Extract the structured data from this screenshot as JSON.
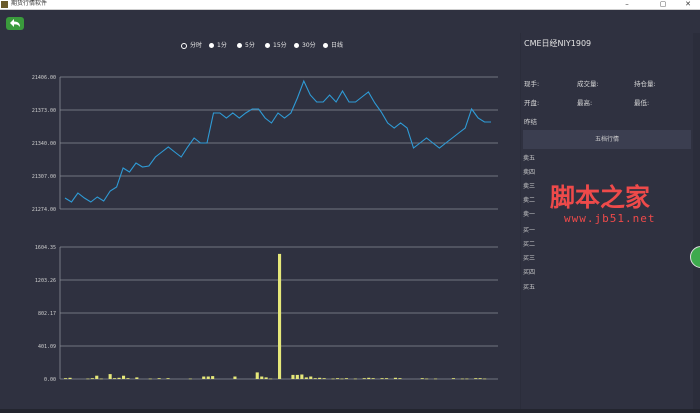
{
  "window": {
    "title": "期货行情软件",
    "min": "–",
    "max": "▢",
    "close": "✕"
  },
  "toolbar": {
    "back_icon": "back-arrow-icon"
  },
  "periods": [
    "分时",
    "1分",
    "5分",
    "15分",
    "30分",
    "日线"
  ],
  "selected_period": "分时",
  "panel": {
    "title": "CME日经NIY1909",
    "fields": [
      [
        "现手:",
        "成交量:",
        "持仓量:"
      ],
      [
        "开盘:",
        "最高:",
        "最低:"
      ],
      [
        "昨结"
      ]
    ],
    "quote_header": "五档行情",
    "quote_rows": [
      "卖五",
      "卖四",
      "卖三",
      "卖二",
      "卖一",
      "买一",
      "买二",
      "买三",
      "买四",
      "买五"
    ]
  },
  "watermark": {
    "main": "脚本之家",
    "sub": "www.jb51.net"
  },
  "colors": {
    "price_line": "#2f9bd6",
    "volume_bar": "#e6e87a",
    "grid": "#8a8c96",
    "background": "#2f3140"
  },
  "chart_data": [
    {
      "type": "line",
      "title": "",
      "ylim": [
        21274.0,
        21406.0
      ],
      "ytick_labels": [
        "21406.00",
        "21373.00",
        "21340.00",
        "21307.00",
        "21274.00"
      ],
      "series": [
        {
          "values": [
            21285,
            21281,
            21290,
            21285,
            21281,
            21286,
            21282,
            21292,
            21296,
            21315,
            21311,
            21320,
            21316,
            21317,
            21326,
            21331,
            21336,
            21331,
            21326,
            21336,
            21345,
            21340,
            21340,
            21370,
            21370,
            21365,
            21370,
            21365,
            21370,
            21374,
            21374,
            21365,
            21360,
            21370,
            21365,
            21370,
            21385,
            21402,
            21388,
            21381,
            21381,
            21388,
            21381,
            21392,
            21381,
            21381,
            21386,
            21391,
            21380,
            21371,
            21360,
            21355,
            21360,
            21355,
            21335,
            21340,
            21345,
            21340,
            21335,
            21340,
            21345,
            21350,
            21355,
            21374,
            21365,
            21361,
            21361
          ]
        }
      ]
    },
    {
      "type": "bar",
      "title": "",
      "ylim": [
        0.0,
        1604.35
      ],
      "ytick_labels": [
        "1604.35",
        "1203.26",
        "802.17",
        "401.09",
        "0.00"
      ],
      "series": [
        {
          "values": [
            10,
            15,
            0,
            0,
            0,
            5,
            10,
            40,
            5,
            0,
            60,
            10,
            15,
            40,
            10,
            0,
            20,
            0,
            0,
            5,
            0,
            10,
            0,
            10,
            0,
            0,
            0,
            0,
            5,
            0,
            0,
            30,
            30,
            35,
            0,
            0,
            0,
            0,
            30,
            0,
            0,
            0,
            0,
            80,
            30,
            20,
            5,
            0,
            1520,
            0,
            0,
            50,
            50,
            55,
            20,
            30,
            10,
            15,
            10,
            0,
            5,
            10,
            5,
            10,
            0,
            5,
            0,
            10,
            15,
            10,
            0,
            10,
            10,
            0,
            15,
            10,
            0,
            0,
            0,
            0,
            10,
            5,
            0,
            5,
            0,
            0,
            0,
            10,
            0,
            5,
            5,
            0,
            10,
            10,
            5,
            0
          ]
        }
      ]
    }
  ]
}
